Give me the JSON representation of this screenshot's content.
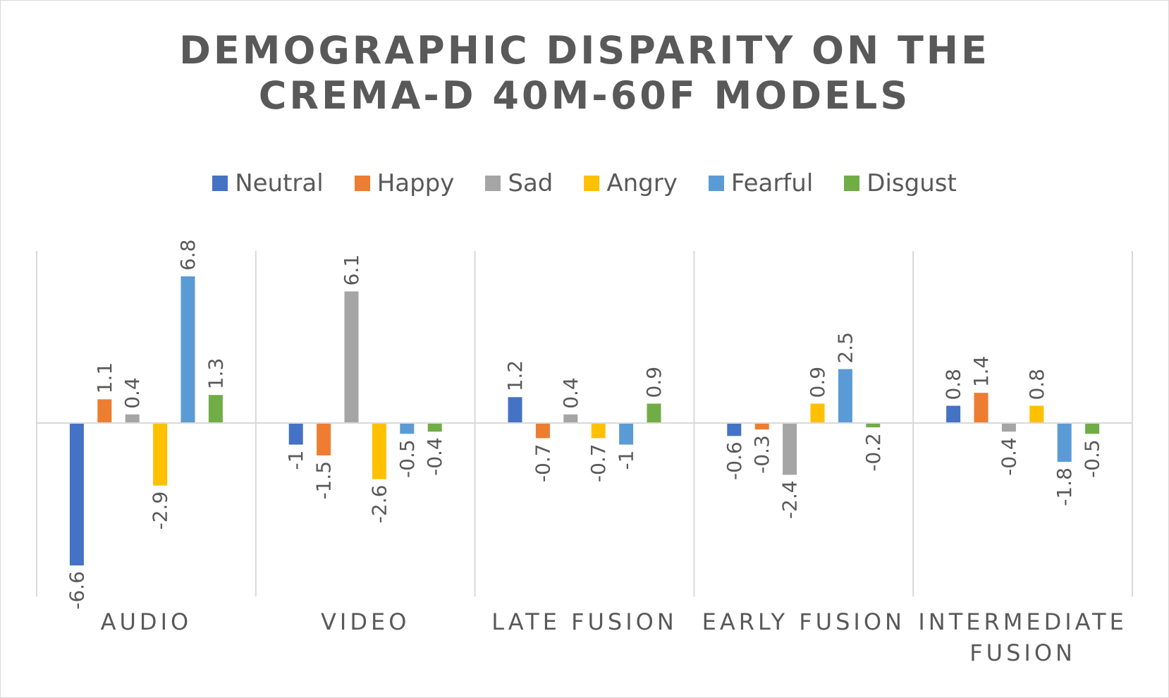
{
  "chart_data": {
    "type": "bar",
    "title_lines": [
      "Demographic Disparity on the",
      "CREMA-D 40M-60F Models"
    ],
    "categories": [
      "AUDIO",
      "VIDEO",
      "LATE FUSION",
      "EARLY FUSION",
      "INTERMEDIATE FUSION"
    ],
    "category_label_lines": [
      [
        "AUDIO"
      ],
      [
        "VIDEO"
      ],
      [
        "LATE FUSION"
      ],
      [
        "EARLY FUSION"
      ],
      [
        "INTERMEDIATE",
        "FUSION"
      ]
    ],
    "series": [
      {
        "name": "Neutral",
        "color": "#4472c4",
        "values": [
          -6.6,
          -1,
          1.2,
          -0.6,
          0.8
        ]
      },
      {
        "name": "Happy",
        "color": "#ed7d31",
        "values": [
          1.1,
          -1.5,
          -0.7,
          -0.3,
          1.4
        ]
      },
      {
        "name": "Sad",
        "color": "#a5a5a5",
        "values": [
          0.4,
          6.1,
          0.4,
          -2.4,
          -0.4
        ]
      },
      {
        "name": "Angry",
        "color": "#ffc000",
        "values": [
          -2.9,
          -2.6,
          -0.7,
          0.9,
          0.8
        ]
      },
      {
        "name": "Fearful",
        "color": "#5b9bd5",
        "values": [
          6.8,
          -0.5,
          -1,
          2.5,
          -1.8
        ]
      },
      {
        "name": "Disgust",
        "color": "#70ad47",
        "values": [
          1.3,
          -0.4,
          0.9,
          -0.2,
          -0.5
        ]
      }
    ],
    "legend_position": "top",
    "data_labels": true,
    "data_label_rotation": "vertical",
    "grid": "vertical category separators",
    "ylim": [
      -8,
      8.1
    ],
    "zero_line": true,
    "label_color": "#595959",
    "grid_color": "#d9d9d9"
  }
}
